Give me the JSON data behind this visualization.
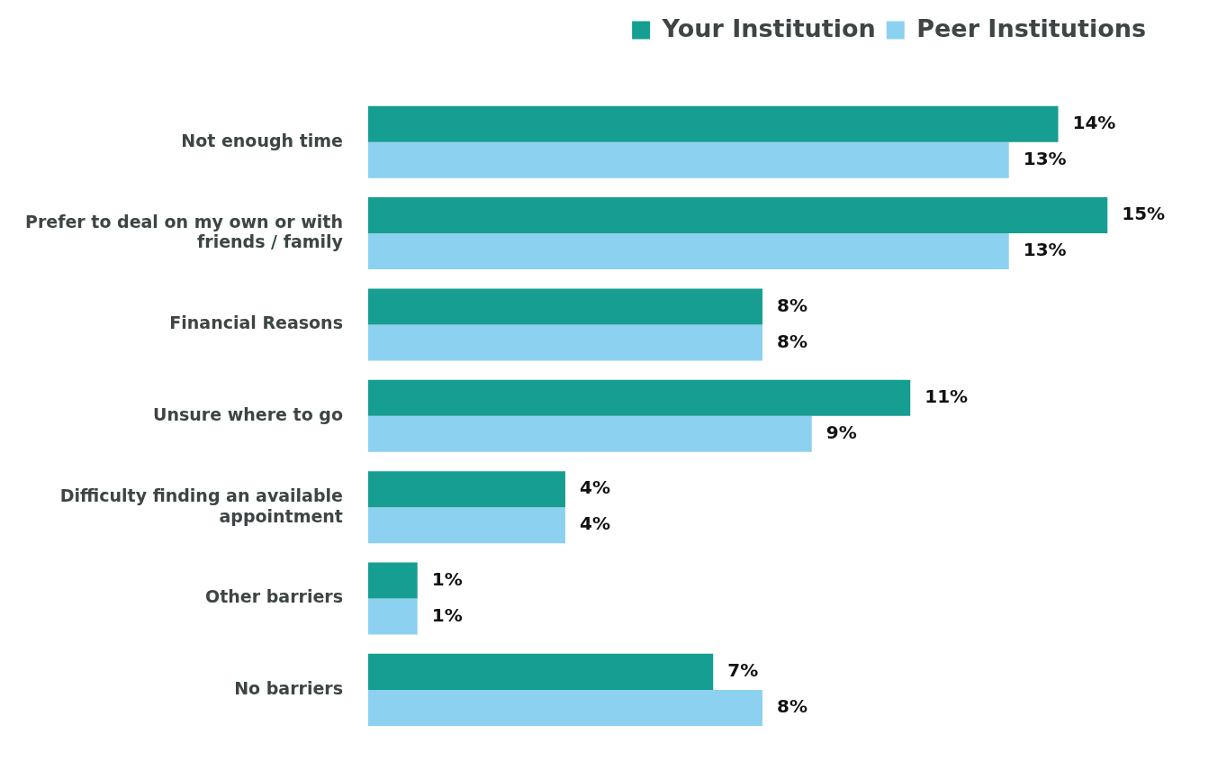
{
  "chart_data": {
    "type": "bar",
    "orientation": "horizontal",
    "categories": [
      "Not enough time",
      "Prefer to deal on my own or with friends / family",
      "Financial Reasons",
      "Unsure where to go",
      "Difficulty finding an available appointment",
      "Other barriers",
      "No barriers"
    ],
    "series": [
      {
        "name": "Your Institution",
        "color": "#159e91",
        "values": [
          14,
          15,
          8,
          11,
          4,
          1,
          7
        ],
        "value_labels": [
          "14%",
          "15%",
          "8%",
          "11%",
          "4%",
          "1%",
          "7%"
        ]
      },
      {
        "name": "Peer Institutions",
        "color": "#8dd1f0",
        "values": [
          13,
          13,
          8,
          9,
          4,
          1,
          8
        ],
        "value_labels": [
          "13%",
          "13%",
          "8%",
          "9%",
          "4%",
          "1%",
          "8%"
        ]
      }
    ],
    "tick_labels": "y",
    "legend": "top right"
  }
}
